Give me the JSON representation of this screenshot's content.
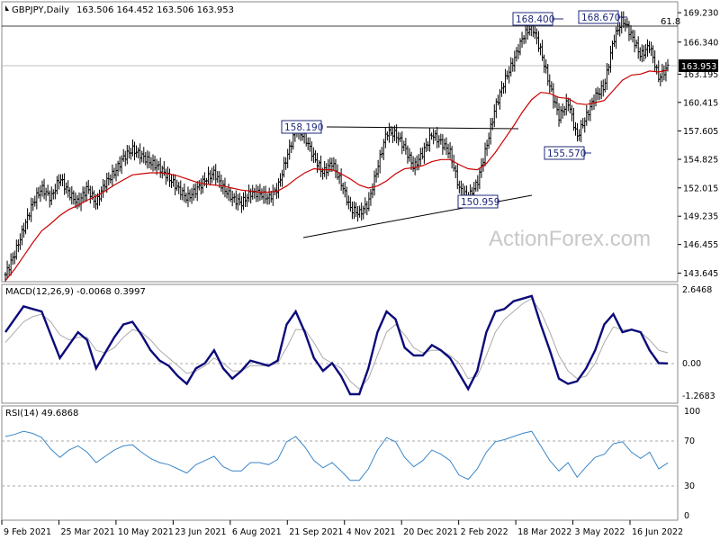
{
  "header": {
    "symbol": "GBPJPY,Daily",
    "ohlc": "163.506 164.452 163.506 163.953"
  },
  "watermark": "ActionForex.com",
  "colors": {
    "price": "#000000",
    "ma": "#cc0000",
    "macd": "#0a0a7a",
    "signal": "#aaaaaa",
    "rsi": "#3a86c8",
    "grid": "#aaaaaa",
    "label_border": "#1f2a7a",
    "price_tag_bg": "#000000"
  },
  "chart_data": [
    {
      "type": "candlestick",
      "title": "GBPJPY,Daily",
      "y_ticks": [
        143.645,
        146.455,
        149.235,
        152.015,
        154.825,
        157.605,
        160.415,
        163.195,
        166.34,
        169.23
      ],
      "ylim": [
        142.8,
        170.3
      ],
      "last_price": "163.953",
      "x_tick_labels": [
        "9 Feb 2021",
        "25 Mar 2021",
        "10 May 2021",
        "23 Jun 2021",
        "6 Aug 2021",
        "21 Sep 2021",
        "4 Nov 2021",
        "20 Dec 2021",
        "2 Feb 2022",
        "18 Mar 2022",
        "3 May 2022",
        "16 Jun 2022"
      ],
      "close_series": [
        143.5,
        145.5,
        148.0,
        150.5,
        152.0,
        151.0,
        153.0,
        151.5,
        150.5,
        152.0,
        150.5,
        152.5,
        153.5,
        155.0,
        155.8,
        155.2,
        154.5,
        154.0,
        153.0,
        152.0,
        151.0,
        151.8,
        152.8,
        153.5,
        152.0,
        151.0,
        150.5,
        151.5,
        151.5,
        151.0,
        152.0,
        155.0,
        157.8,
        157.0,
        155.0,
        153.5,
        154.5,
        152.5,
        150.0,
        149.5,
        150.5,
        154.0,
        157.5,
        157.3,
        156.0,
        154.0,
        155.5,
        157.3,
        156.5,
        155.5,
        152.0,
        151.0,
        152.5,
        156.0,
        160.0,
        162.5,
        164.5,
        166.8,
        168.0,
        165.5,
        162.0,
        159.0,
        160.5,
        157.0,
        159.0,
        161.0,
        162.0,
        166.5,
        168.6,
        167.0,
        165.0,
        166.0,
        162.8,
        163.9
      ],
      "ma_series": [
        142.9,
        144.0,
        145.3,
        146.6,
        147.8,
        148.5,
        149.3,
        149.9,
        150.3,
        150.8,
        151.2,
        151.7,
        152.3,
        152.8,
        153.3,
        153.4,
        153.5,
        153.5,
        153.4,
        153.2,
        152.9,
        152.6,
        152.4,
        152.3,
        152.2,
        152.0,
        151.8,
        151.7,
        151.6,
        151.6,
        151.7,
        152.2,
        152.9,
        153.5,
        153.9,
        153.8,
        153.8,
        153.4,
        152.9,
        152.3,
        152.0,
        152.2,
        152.7,
        153.4,
        153.9,
        154.0,
        154.2,
        154.6,
        154.8,
        154.8,
        154.3,
        153.9,
        153.8,
        154.4,
        155.5,
        156.8,
        158.1,
        159.5,
        160.7,
        161.4,
        161.3,
        160.9,
        160.8,
        160.3,
        160.2,
        160.4,
        160.6,
        161.6,
        162.6,
        163.1,
        163.2,
        163.5,
        163.4,
        163.6
      ],
      "annotations": [
        {
          "text": "158.190"
        },
        {
          "text": "150.959"
        },
        {
          "text": "168.400"
        },
        {
          "text": "168.670"
        },
        {
          "text": "155.570"
        },
        {
          "text": "61.8"
        }
      ]
    },
    {
      "type": "line",
      "title": "MACD(12,26,9) -0.0068 0.3997",
      "y_ticks": [
        "2.6468",
        "0.00",
        "-1.2683"
      ],
      "ylim": [
        -1.55,
        3.05
      ],
      "series": [
        {
          "values": [
            1.2,
            1.7,
            2.2,
            2.1,
            2.0,
            1.1,
            0.2,
            0.7,
            1.2,
            0.9,
            -0.2,
            0.4,
            1.0,
            1.5,
            1.6,
            1.1,
            0.5,
            0.1,
            -0.1,
            -0.5,
            -0.8,
            -0.2,
            0.0,
            0.5,
            -0.2,
            -0.6,
            -0.3,
            0.1,
            0.0,
            -0.1,
            0.1,
            1.5,
            2.0,
            1.2,
            0.2,
            -0.3,
            0.0,
            -0.5,
            -1.2,
            -1.2,
            -0.2,
            1.2,
            2.0,
            1.7,
            0.6,
            0.3,
            0.3,
            0.7,
            0.5,
            0.2,
            -0.4,
            -1.0,
            -0.3,
            1.2,
            2.0,
            2.1,
            2.4,
            2.5,
            2.6,
            1.5,
            0.5,
            -0.6,
            -0.8,
            -0.7,
            -0.2,
            0.5,
            1.5,
            1.9,
            1.2,
            1.3,
            1.2,
            0.5,
            0.0,
            -0.01
          ]
        },
        {
          "values": [
            0.8,
            1.2,
            1.6,
            1.8,
            1.9,
            1.6,
            1.1,
            0.9,
            1.0,
            1.0,
            0.5,
            0.4,
            0.6,
            1.0,
            1.3,
            1.2,
            0.9,
            0.5,
            0.2,
            -0.1,
            -0.4,
            -0.3,
            -0.1,
            0.2,
            0.0,
            -0.3,
            -0.3,
            -0.1,
            -0.1,
            -0.1,
            0.0,
            0.6,
            1.3,
            1.3,
            0.8,
            0.2,
            0.0,
            -0.2,
            -0.7,
            -1.0,
            -0.6,
            0.3,
            1.2,
            1.5,
            1.1,
            0.6,
            0.4,
            0.5,
            0.5,
            0.3,
            0.0,
            -0.6,
            -0.5,
            0.3,
            1.2,
            1.7,
            2.0,
            2.3,
            2.5,
            2.0,
            1.2,
            0.3,
            -0.3,
            -0.6,
            -0.5,
            0.0,
            0.8,
            1.4,
            1.3,
            1.3,
            1.2,
            0.9,
            0.5,
            0.4
          ]
        }
      ]
    },
    {
      "type": "line",
      "title": "RSI(14) 49.6868",
      "y_ticks": [
        "100",
        "70",
        "30",
        "0"
      ],
      "ylim": [
        0,
        100
      ],
      "series": [
        {
          "values": [
            75,
            77,
            80,
            78,
            74,
            63,
            55,
            62,
            66,
            60,
            50,
            56,
            62,
            66,
            67,
            60,
            54,
            50,
            48,
            44,
            40,
            48,
            52,
            56,
            46,
            42,
            42,
            50,
            50,
            48,
            53,
            70,
            75,
            65,
            52,
            45,
            50,
            42,
            33,
            33,
            44,
            62,
            74,
            70,
            55,
            46,
            52,
            62,
            58,
            52,
            38,
            34,
            44,
            60,
            70,
            72,
            75,
            78,
            80,
            66,
            52,
            42,
            50,
            36,
            46,
            55,
            58,
            68,
            70,
            60,
            54,
            60,
            44,
            49.7
          ]
        }
      ]
    }
  ]
}
